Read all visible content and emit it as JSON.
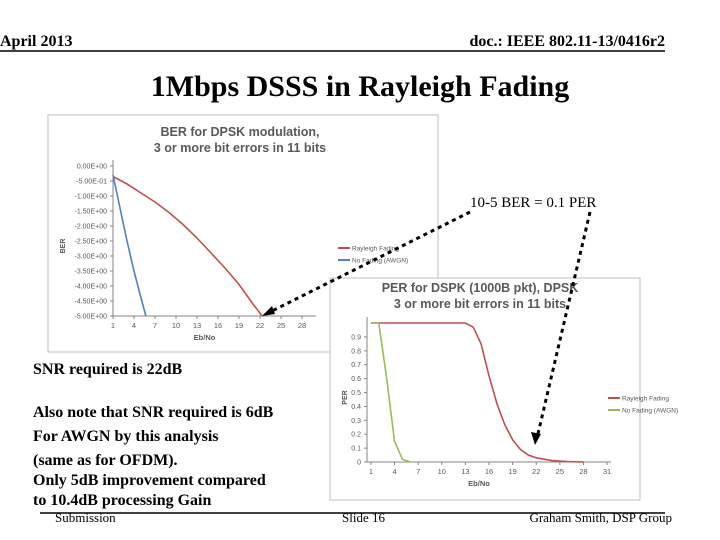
{
  "header": {
    "date": "April 2013",
    "doc": "doc.: IEEE 802.11-13/0416r2"
  },
  "title": "1Mbps DSSS in Rayleigh Fading",
  "annotation": "10-5 BER = 0.1 PER",
  "notes": [
    "SNR required is 22dB",
    "Also note that SNR required is 6dB",
    "For AWGN by this analysis",
    "(same as for OFDM).",
    "Only 5dB improvement compared",
    " to 10.4dB processing Gain"
  ],
  "footer": {
    "left": "Submission",
    "center": "Slide 16",
    "right": "Graham Smith, DSP Group"
  },
  "chart_data": [
    {
      "type": "line",
      "title": [
        "BER for DPSK modulation,",
        "3 or more bit errors in 11 bits"
      ],
      "x_label": "Eb/No",
      "y_label": "BER",
      "xlim": [
        1,
        30
      ],
      "xticks": [
        1,
        4,
        7,
        10,
        13,
        16,
        19,
        22,
        25,
        28
      ],
      "ylim": [
        -5,
        0
      ],
      "yticks": [
        {
          "value": 0,
          "label": "0.00E+00"
        },
        {
          "value": -0.5,
          "label": "-5.00E-01"
        },
        {
          "value": -1,
          "label": "-1.00E+00"
        },
        {
          "value": -1.5,
          "label": "-1.50E+00"
        },
        {
          "value": -2,
          "label": "-2.00E+00"
        },
        {
          "value": -2.5,
          "label": "-2.50E+00"
        },
        {
          "value": -3,
          "label": "-3.00E+00"
        },
        {
          "value": -3.5,
          "label": "-3.50E+00"
        },
        {
          "value": -4,
          "label": "-4.00E+00"
        },
        {
          "value": -4.5,
          "label": "-4.50E+00"
        },
        {
          "value": -5,
          "label": "-5.00E+00"
        }
      ],
      "series": [
        {
          "name": "Rayleigh Fading",
          "color": "#c0504d",
          "x": [
            1,
            3,
            5,
            7,
            9,
            11,
            13,
            15,
            17,
            19,
            21,
            22.3
          ],
          "values": [
            -0.35,
            -0.6,
            -0.9,
            -1.2,
            -1.55,
            -1.95,
            -2.4,
            -2.9,
            -3.4,
            -3.95,
            -4.6,
            -5
          ]
        },
        {
          "name": "No Fading (AWGN)",
          "color": "#4f81bd",
          "x": [
            1,
            2,
            3,
            4,
            5,
            5.7
          ],
          "values": [
            -0.3,
            -1.4,
            -2.5,
            -3.5,
            -4.4,
            -5
          ]
        }
      ]
    },
    {
      "type": "line",
      "title": [
        "PER for DSPK (1000B pkt), DPSK",
        "3 or more bit errors in 11 bits"
      ],
      "x_label": "Eb/No",
      "y_label": "PER",
      "xlim": [
        0.5,
        31.5
      ],
      "xticks": [
        1,
        4,
        7,
        10,
        13,
        16,
        19,
        22,
        25,
        28,
        31
      ],
      "ylim": [
        0,
        1
      ],
      "yticks": [
        0,
        0.1,
        0.2,
        0.3,
        0.4,
        0.5,
        0.6,
        0.7,
        0.8,
        0.9
      ],
      "series": [
        {
          "name": "Rayleigh Fading",
          "color": "#c0504d",
          "x": [
            1,
            13,
            14,
            15,
            16,
            17,
            18,
            19,
            20,
            21,
            22,
            24,
            26,
            28
          ],
          "values": [
            1,
            1,
            0.97,
            0.85,
            0.62,
            0.42,
            0.27,
            0.16,
            0.09,
            0.05,
            0.03,
            0.01,
            0.003,
            0
          ]
        },
        {
          "name": "No Fading (AWGN)",
          "color": "#9bbb59",
          "x": [
            1,
            2,
            3,
            4,
            5,
            6
          ],
          "values": [
            1,
            1,
            0.6,
            0.15,
            0.02,
            0
          ]
        }
      ]
    }
  ]
}
